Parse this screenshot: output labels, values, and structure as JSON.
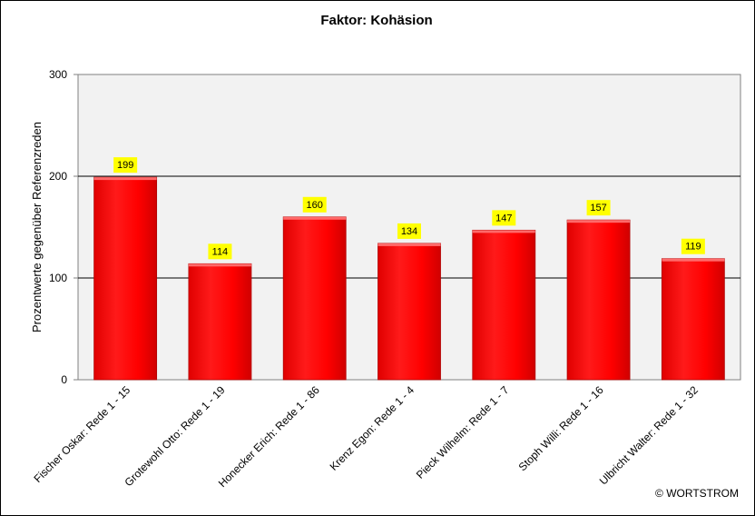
{
  "colors": {
    "bar": "#ff0000",
    "bar_edge": "#b00000",
    "plot_background": "#f2f2f2",
    "data_label_background": "#ffff00",
    "gridline": "#000000"
  },
  "copyright": "© WORTSTROM",
  "chart_data": {
    "type": "bar",
    "title": "Faktor: Kohäsion",
    "xlabel": "",
    "ylabel": "Prozentwerte  gegenüber Referenzreden",
    "ylim": [
      0,
      300
    ],
    "yticks": [
      0,
      100,
      200,
      300
    ],
    "grid": true,
    "legend": "none",
    "categories": [
      "Fischer Oskar: Rede 1 - 15",
      "Grotewohl Otto: Rede 1 - 19",
      "Honecker Erich: Rede 1 - 86",
      "Krenz Egon: Rede 1 - 4",
      "Pieck Wilhelm: Rede 1 - 7",
      "Stoph Willi: Rede 1 - 16",
      "Ulbricht Walter: Rede 1 - 32"
    ],
    "values": [
      199,
      114,
      160,
      134,
      147,
      157,
      119
    ]
  }
}
